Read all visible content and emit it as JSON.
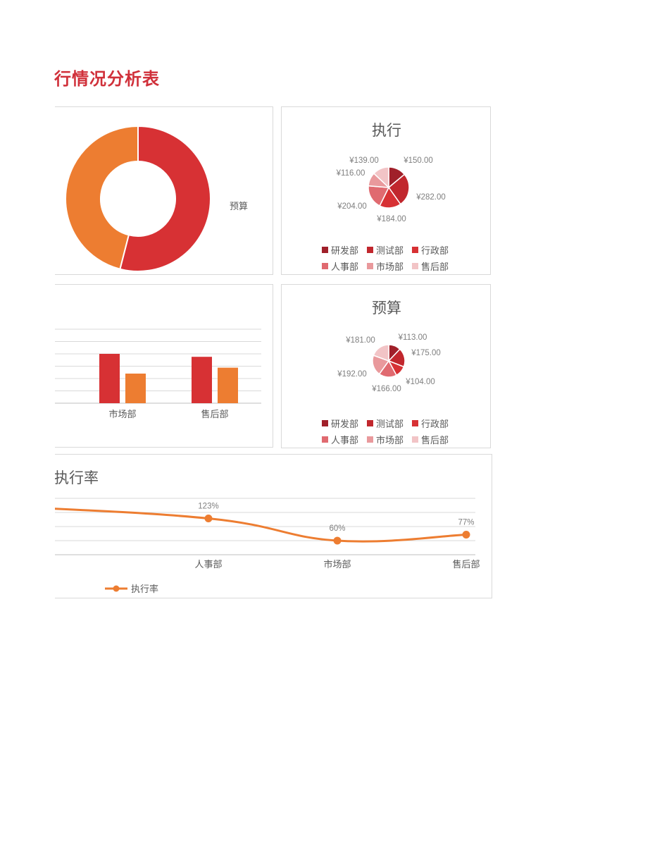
{
  "page": {
    "title": "行情况分析表"
  },
  "colors": {
    "red": "#d73134",
    "orange": "#ed7d31",
    "grid": "#d9d9d9",
    "pie": [
      "#a0202a",
      "#c1272d",
      "#d73134",
      "#e06a70",
      "#e9999c",
      "#f2c4c6"
    ]
  },
  "chart_data": [
    {
      "type": "pie",
      "subtype": "doughnut",
      "title": "",
      "series": [
        {
          "name": "预算",
          "values": [
            54,
            46
          ]
        }
      ],
      "slice_colors": [
        "#d73134",
        "#ed7d31"
      ],
      "legend": {
        "position": "right",
        "label": "预算"
      }
    },
    {
      "type": "pie",
      "title": "执行",
      "categories": [
        "研发部",
        "测试部",
        "行政部",
        "人事部",
        "市场部",
        "售后部"
      ],
      "values": [
        150,
        282,
        184,
        204,
        116,
        139
      ],
      "data_labels": [
        "¥150.00",
        "¥282.00",
        "¥184.00",
        "¥204.00",
        "¥116.00",
        "¥139.00"
      ],
      "legend": "bottom"
    },
    {
      "type": "bar",
      "title": "",
      "categories": [
        "市场部",
        "售后部"
      ],
      "series": [
        {
          "values": [
            100,
            94
          ]
        },
        {
          "values": [
            60,
            72
          ]
        }
      ],
      "ylim": [
        0,
        150
      ],
      "grid": true
    },
    {
      "type": "pie",
      "title": "预算",
      "categories": [
        "研发部",
        "测试部",
        "行政部",
        "人事部",
        "市场部",
        "售后部"
      ],
      "values": [
        113,
        175,
        104,
        166,
        192,
        181
      ],
      "data_labels": [
        "¥113.00",
        "¥175.00",
        "¥104.00",
        "¥166.00",
        "¥192.00",
        "¥181.00"
      ],
      "legend": "bottom"
    },
    {
      "type": "line",
      "title": "执行率",
      "categories": [
        "",
        "人事部",
        "市场部",
        "售后部"
      ],
      "series": [
        {
          "name": "执行率",
          "values": [
            160,
            123,
            60,
            77
          ]
        }
      ],
      "data_labels": [
        "",
        "123%",
        "60%",
        "77%"
      ],
      "legend": "bottom",
      "grid": true
    }
  ]
}
